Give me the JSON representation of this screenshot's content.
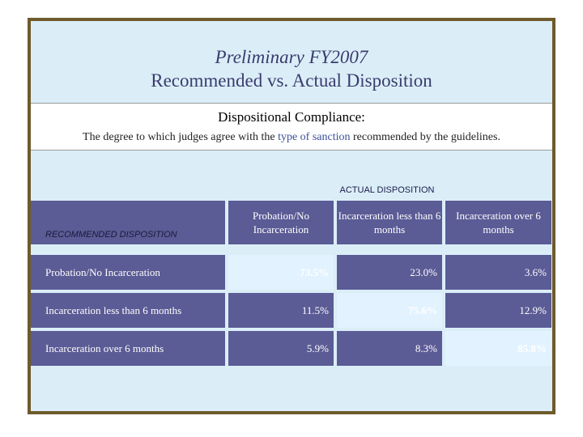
{
  "title": {
    "line1": "Preliminary FY2007",
    "line2": "Recommended vs. Actual Disposition"
  },
  "definition": {
    "heading": "Dispositional Compliance:",
    "text_before": "The degree to which judges agree with the",
    "highlight": "type of sanction",
    "text_after": "recommended by the guidelines."
  },
  "table": {
    "actual_header": "ACTUAL DISPOSITION",
    "recommended_header": "RECOMMENDED DISPOSITION",
    "columns": [
      "Probation/No Incarceration",
      "Incarceration less than 6 months",
      "Incarceration over 6 months"
    ],
    "rows": [
      {
        "label": "Probation/No Incarceration",
        "values": [
          "73.5%",
          "23.0%",
          "3.6%"
        ]
      },
      {
        "label": "Incarceration less than 6 months",
        "values": [
          "11.5%",
          "75.6%",
          "12.9%"
        ]
      },
      {
        "label": "Incarceration over 6 months",
        "values": [
          "5.9%",
          "8.3%",
          "85.8%"
        ]
      }
    ]
  },
  "colors": {
    "frame": "#6e5a2c",
    "background": "#dbeef8",
    "table_fill": "#5b5b96",
    "diagonal_fill": "#e2f2ff"
  }
}
